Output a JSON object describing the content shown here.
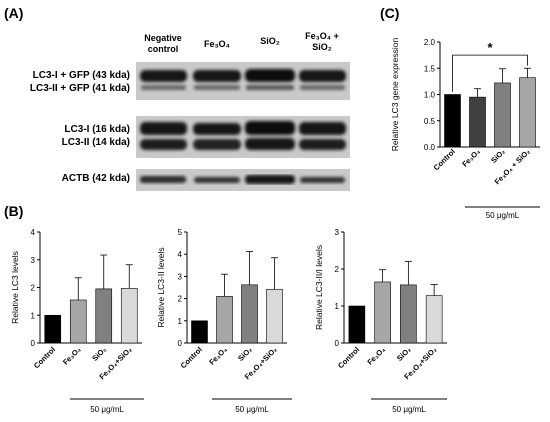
{
  "panels": {
    "a_letter": "(A)",
    "b_letter": "(B)",
    "c_letter": "(C)"
  },
  "western_blot": {
    "lanes": [
      {
        "line1": "Negative",
        "line2": "control"
      },
      {
        "line1": "Fe₃O₄",
        "line2": ""
      },
      {
        "line1": "SiO₂",
        "line2": ""
      },
      {
        "line1": "Fe₃O₄ +",
        "line2": "SiO₂"
      }
    ],
    "rows": [
      {
        "label1": "LC3-I + GFP (43 kda)",
        "label2": "LC3-II + GFP (41 kda)"
      },
      {
        "label1": "LC3-I (16 kda)",
        "label2": "LC3-II (14 kda)"
      },
      {
        "label1": "ACTB (42 kda)",
        "label2": ""
      }
    ]
  },
  "chart_data": [
    {
      "id": "B1",
      "type": "bar",
      "categories": [
        "Control",
        "Fe₃O₄",
        "SiO₂",
        "Fe₃O₄+SiO₂"
      ],
      "values": [
        1.0,
        1.55,
        1.95,
        1.97
      ],
      "errors": [
        0,
        0.8,
        1.22,
        0.85
      ],
      "ylabel": "Relative LC3 levels",
      "xlabel": "50 μg/mL",
      "ylim": [
        0,
        4
      ],
      "yticks": [
        "0",
        "1",
        "2",
        "3",
        "4"
      ],
      "colors": [
        "#000000",
        "#a6a6a6",
        "#808080",
        "#d9d9d9"
      ]
    },
    {
      "id": "B2",
      "type": "bar",
      "categories": [
        "Control",
        "Fe₃O₄",
        "SiO₂",
        "Fe₃O₄+SiO₂"
      ],
      "values": [
        1.0,
        2.1,
        2.62,
        2.42
      ],
      "errors": [
        0,
        1.0,
        1.5,
        1.42
      ],
      "ylabel": "Relative LC3-II levels",
      "xlabel": "50 μg/mL",
      "ylim": [
        0,
        5
      ],
      "yticks": [
        "0",
        "1",
        "2",
        "3",
        "4",
        "5"
      ],
      "colors": [
        "#000000",
        "#a6a6a6",
        "#808080",
        "#d9d9d9"
      ]
    },
    {
      "id": "B3",
      "type": "bar",
      "categories": [
        "Control",
        "Fe₃O₄",
        "SiO₂",
        "Fe₃O₄+SiO₂"
      ],
      "values": [
        1.0,
        1.65,
        1.57,
        1.28
      ],
      "errors": [
        0,
        0.33,
        0.63,
        0.3
      ],
      "ylabel": "Relative LC3-II/I levels",
      "xlabel": "50 μg/mL",
      "ylim": [
        0,
        3
      ],
      "yticks": [
        "0",
        "1",
        "2",
        "3"
      ],
      "colors": [
        "#000000",
        "#a6a6a6",
        "#808080",
        "#d9d9d9"
      ]
    },
    {
      "id": "C",
      "type": "bar",
      "categories": [
        "Control",
        "Fe₃O₄",
        "SiO₂",
        "Fe₃O₄ + SiO₂"
      ],
      "values": [
        1.0,
        0.95,
        1.22,
        1.32
      ],
      "errors": [
        0,
        0.16,
        0.27,
        0.18
      ],
      "ylabel": "Relative LC3 gene expression",
      "xlabel": "50 μg/mL",
      "ylim": [
        0,
        2.0
      ],
      "yticks": [
        "0.0",
        "0.5",
        "1.0",
        "1.5",
        "2.0"
      ],
      "colors": [
        "#000000",
        "#404040",
        "#808080",
        "#a6a6a6"
      ],
      "significance": "*"
    }
  ]
}
